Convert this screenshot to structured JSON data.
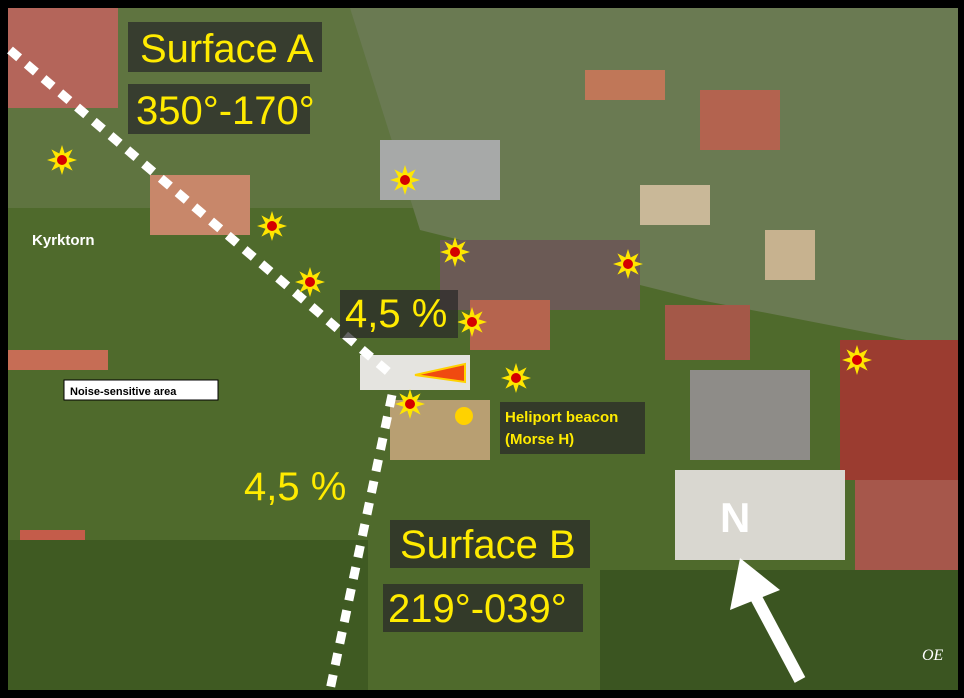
{
  "labels": {
    "surface_a": "Surface A",
    "surface_a_range": "350°-170°",
    "kyrktorn": "Kyrktorn",
    "gradient_a": "4,5 %",
    "noise_area": "Noise-sensitive area",
    "beacon": "Heliport beacon",
    "beacon_mode": "(Morse H)",
    "gradient_b": "4,5 %",
    "surface_b": "Surface B",
    "surface_b_range": "219°-039°",
    "north": "N",
    "signature": "OE"
  }
}
